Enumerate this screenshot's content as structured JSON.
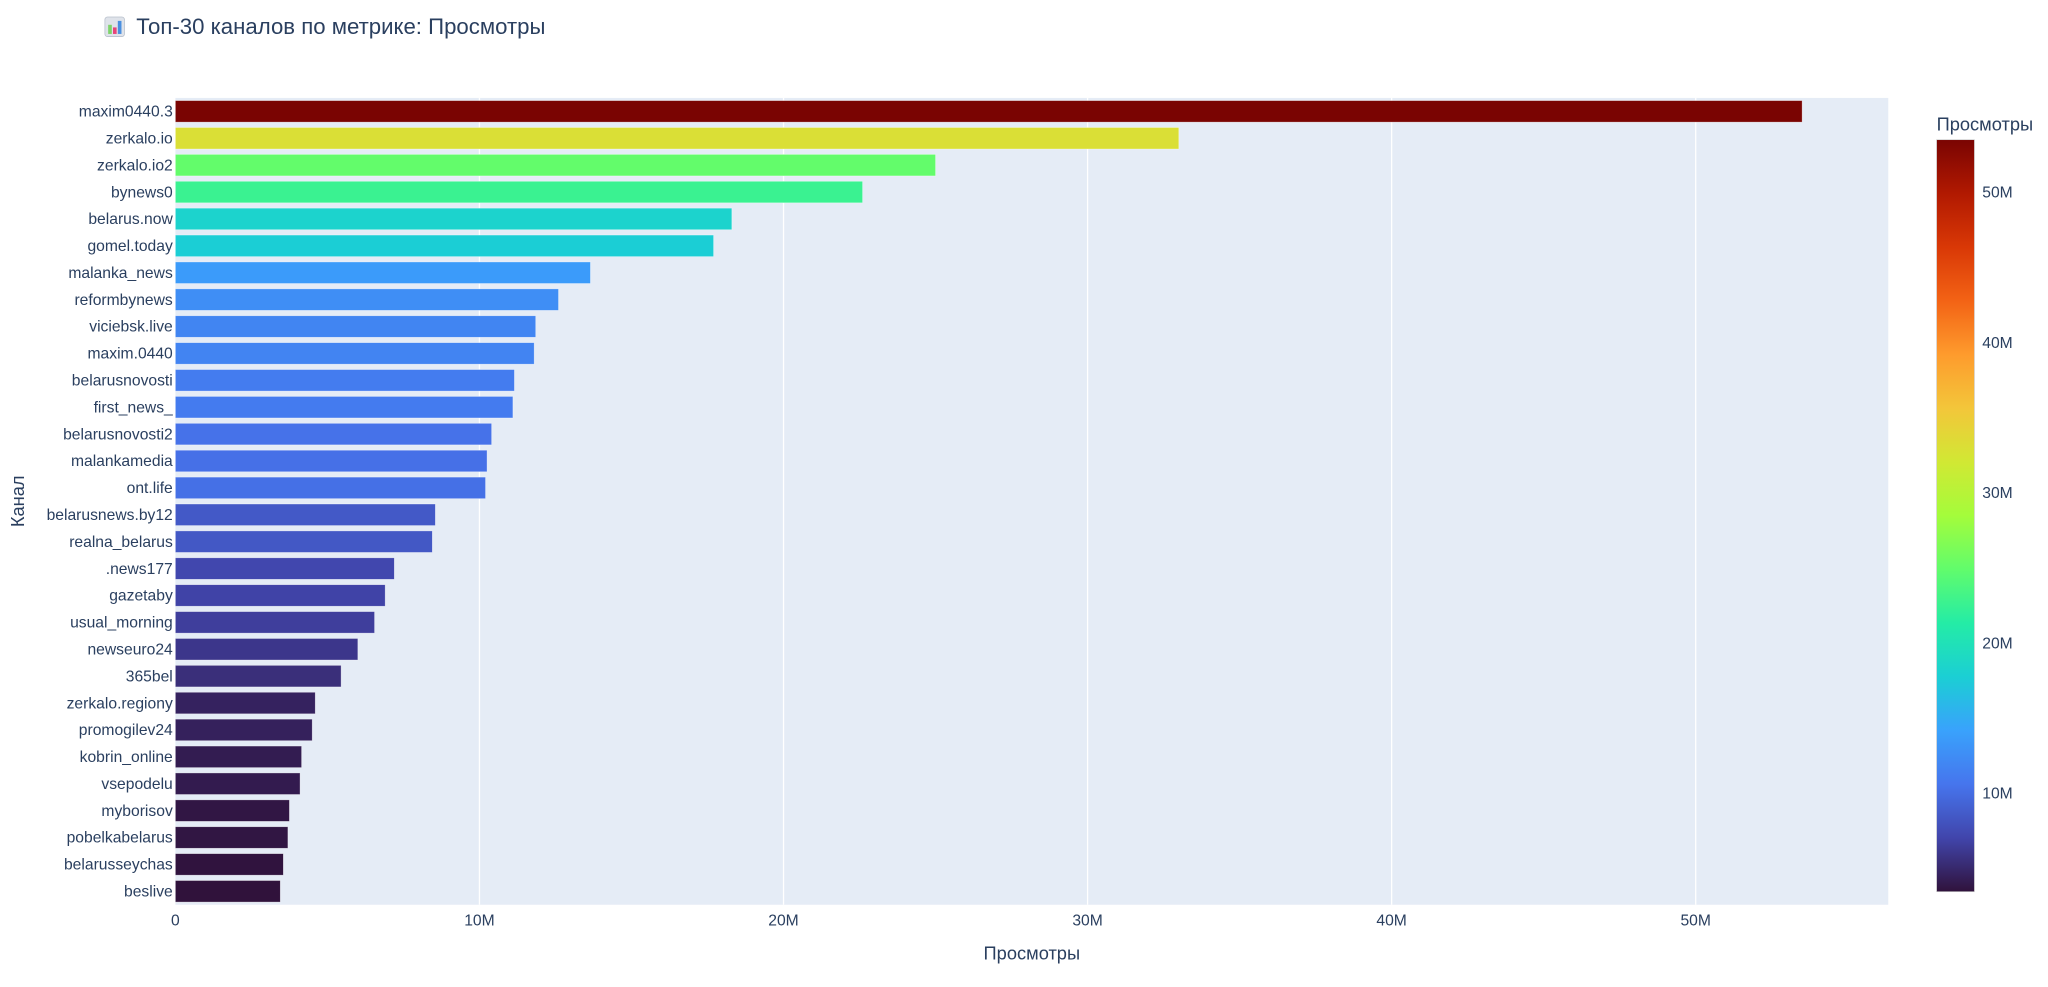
{
  "chart_data": {
    "type": "bar",
    "orientation": "horizontal",
    "title": "Топ-30 каналов по метрике: Просмотры",
    "title_icon": "bar-chart-emoji-icon",
    "xlabel": "Просмотры",
    "ylabel": "Канал",
    "xlim": [
      0,
      56.3
    ],
    "x_unit": "millions",
    "x_ticks": [
      0,
      10,
      20,
      30,
      40,
      50
    ],
    "x_tick_labels": [
      "0",
      "10M",
      "20M",
      "30M",
      "40M",
      "50M"
    ],
    "grid": true,
    "categories": [
      "maxim0440.3",
      "zerkalo.io",
      "zerkalo.io2",
      "bynews0",
      "belarus.now",
      "gomel.today",
      "malanka_news",
      "reformbynews",
      "viciebsk.live",
      "maxim.0440",
      "belarusnovosti",
      "first_news_",
      "belarusnovosti2",
      "malankamedia",
      "ont.life",
      "belarusnews.by12",
      "realna_belarus",
      ".news177",
      "gazetaby",
      "usual_morning",
      "newseuro24",
      "365bel",
      "zerkalo.regiony",
      "promogilev24",
      "kobrin_online",
      "vsepodelu",
      "myborisov",
      "pobelkabelarus",
      "belarusseychas",
      "beslive"
    ],
    "values": [
      53.5,
      33.0,
      25.0,
      22.6,
      18.3,
      17.7,
      13.65,
      12.6,
      11.85,
      11.8,
      11.15,
      11.1,
      10.4,
      10.25,
      10.2,
      8.55,
      8.45,
      7.2,
      6.9,
      6.55,
      6.0,
      5.45,
      4.6,
      4.5,
      4.15,
      4.1,
      3.75,
      3.7,
      3.55,
      3.45
    ],
    "colorbar": {
      "title": "Просмотры",
      "colorscale": "Turbo",
      "cmin": 3.45,
      "cmax": 53.5,
      "ticks": [
        10,
        20,
        30,
        40,
        50
      ],
      "tick_labels": [
        "10M",
        "20M",
        "30M",
        "40M",
        "50M"
      ],
      "placement": "right"
    },
    "colors": {
      "plot_bg": "#e5ecf6",
      "text": "#2a3f5f",
      "turbo": [
        "#30123b",
        "#4145ab",
        "#4675ed",
        "#39a2fc",
        "#1bcfd4",
        "#24eca6",
        "#61fc6c",
        "#a4fc3b",
        "#d1e834",
        "#f3c63a",
        "#fe9b2d",
        "#f36315",
        "#d93806",
        "#b11901",
        "#7a0402"
      ]
    }
  }
}
